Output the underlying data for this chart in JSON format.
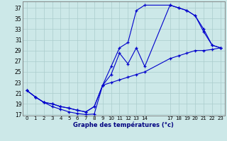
{
  "xlabel": "Graphe des températures (°c)",
  "bg_color": "#cce8e8",
  "grid_color": "#aacccc",
  "line_color": "#0000cc",
  "xlim": [
    -0.5,
    23.5
  ],
  "ylim": [
    16.8,
    38.2
  ],
  "xticks": [
    0,
    1,
    2,
    3,
    4,
    5,
    6,
    7,
    8,
    9,
    10,
    11,
    12,
    13,
    14,
    17,
    18,
    19,
    20,
    21,
    22,
    23
  ],
  "yticks": [
    17,
    19,
    21,
    23,
    25,
    27,
    29,
    31,
    33,
    35,
    37
  ],
  "line1_x": [
    0,
    1,
    2,
    3,
    4,
    5,
    6,
    7,
    8,
    9,
    10,
    11,
    12,
    13,
    14,
    17,
    18,
    19,
    20,
    21,
    22,
    23
  ],
  "line1_y": [
    21.5,
    20.3,
    19.3,
    18.5,
    18.0,
    17.5,
    17.2,
    17.0,
    17.1,
    22.5,
    26.0,
    29.5,
    30.5,
    36.5,
    37.5,
    37.5,
    37.0,
    36.5,
    35.5,
    33.0,
    30.0,
    29.5
  ],
  "line2_x": [
    0,
    1,
    2,
    3,
    4,
    5,
    6,
    7,
    8,
    9,
    10,
    11,
    12,
    13,
    14,
    17,
    18,
    19,
    20,
    21,
    22,
    23
  ],
  "line2_y": [
    21.5,
    20.3,
    19.3,
    19.0,
    18.5,
    18.2,
    17.8,
    17.5,
    18.5,
    22.5,
    24.5,
    28.5,
    26.5,
    29.5,
    26.0,
    37.5,
    37.0,
    36.5,
    35.5,
    32.5,
    30.0,
    29.5
  ],
  "line3_x": [
    0,
    1,
    2,
    3,
    4,
    5,
    6,
    7,
    8,
    9,
    10,
    11,
    12,
    13,
    14,
    17,
    18,
    19,
    20,
    21,
    22,
    23
  ],
  "line3_y": [
    21.5,
    20.3,
    19.3,
    19.0,
    18.5,
    18.2,
    17.8,
    17.5,
    18.5,
    22.5,
    23.0,
    23.5,
    24.0,
    24.5,
    25.0,
    27.5,
    28.0,
    28.5,
    29.0,
    29.0,
    29.2,
    29.5
  ],
  "xtick_fontsize": 5.0,
  "ytick_fontsize": 5.5,
  "xlabel_fontsize": 6.0
}
